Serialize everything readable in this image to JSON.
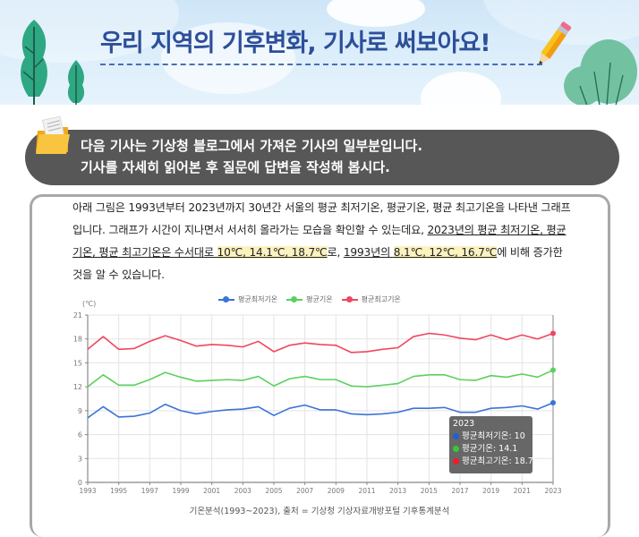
{
  "banner": {
    "title": "우리 지역의 기후변화, 기사로 써보아요!"
  },
  "notice": {
    "line1": "다음 기사는 기상청 블로그에서 가져온 기사의 일부분입니다.",
    "line2": "기사를 자세히 읽어본 후 질문에 답변을 작성해 봅시다."
  },
  "article": {
    "p1": "아래 그림은 1993년부터 2023년까지 30년간 서울의 평균 최저기온, 평균기온, 평균 최고기온을 나타낸 그래프입니다. 그래프가 시간이 지나면서 서서히 올라가는 모습을 확인할 수 있는데요, ",
    "u1": "2023년의 평균 최저기온, 평균기온, 평균 최고기온은 수서대로 ",
    "h1": "10℃, 14.1℃, 18.7℃",
    "t2": "로, ",
    "u2": "1993년의 ",
    "h2": "8.1℃, 12℃, 16.7℃",
    "t3": "에 비해 증가한 것을 알 수 있습니다."
  },
  "chart_data": {
    "type": "line",
    "title": "",
    "xlabel": "",
    "ylabel": "(℃)",
    "ylim": [
      0,
      21
    ],
    "yticks": [
      0,
      3,
      6,
      9,
      12,
      15,
      18,
      21
    ],
    "xticks": [
      "1993",
      "1995",
      "1997",
      "1999",
      "2001",
      "2003",
      "2005",
      "2007",
      "2009",
      "2011",
      "2013",
      "2015",
      "2017",
      "2019",
      "2021",
      "2023"
    ],
    "grid": true,
    "legend_position": "top",
    "x": [
      1993,
      1994,
      1995,
      1996,
      1997,
      1998,
      1999,
      2000,
      2001,
      2002,
      2003,
      2004,
      2005,
      2006,
      2007,
      2008,
      2009,
      2010,
      2011,
      2012,
      2013,
      2014,
      2015,
      2016,
      2017,
      2018,
      2019,
      2020,
      2021,
      2022,
      2023
    ],
    "series": [
      {
        "name": "평균최저기온",
        "color": "#3b73d6",
        "values": [
          8.1,
          9.5,
          8.2,
          8.3,
          8.7,
          9.8,
          9.0,
          8.6,
          8.9,
          9.1,
          9.2,
          9.5,
          8.4,
          9.3,
          9.7,
          9.1,
          9.1,
          8.6,
          8.5,
          8.6,
          8.8,
          9.3,
          9.3,
          9.4,
          8.8,
          8.8,
          9.3,
          9.4,
          9.6,
          9.2,
          10.0
        ]
      },
      {
        "name": "평균기온",
        "color": "#5cd05c",
        "values": [
          12.0,
          13.5,
          12.2,
          12.2,
          12.9,
          13.8,
          13.2,
          12.7,
          12.8,
          12.9,
          12.8,
          13.3,
          12.1,
          13.0,
          13.3,
          12.9,
          12.9,
          12.1,
          12.0,
          12.2,
          12.4,
          13.3,
          13.5,
          13.5,
          12.9,
          12.8,
          13.4,
          13.2,
          13.6,
          13.2,
          14.1
        ]
      },
      {
        "name": "평균최고기온",
        "color": "#f0465e",
        "values": [
          16.7,
          18.3,
          16.7,
          16.8,
          17.7,
          18.4,
          17.8,
          17.1,
          17.3,
          17.2,
          17.0,
          17.7,
          16.4,
          17.2,
          17.5,
          17.3,
          17.2,
          16.3,
          16.4,
          16.7,
          16.9,
          18.3,
          18.7,
          18.5,
          18.1,
          17.9,
          18.5,
          17.9,
          18.5,
          18.0,
          18.7
        ]
      }
    ],
    "tooltip": {
      "year": "2023",
      "rows": [
        {
          "label": "평균최저기온: 10",
          "color": "#1f5fd6"
        },
        {
          "label": "평균기온: 14.1",
          "color": "#35c935"
        },
        {
          "label": "평균최고기온: 18.7",
          "color": "#f01c2c"
        }
      ]
    },
    "caption": "기온분석(1993~2023), 출처 = 기상청 기상자료개방포털 기후통계분석"
  }
}
